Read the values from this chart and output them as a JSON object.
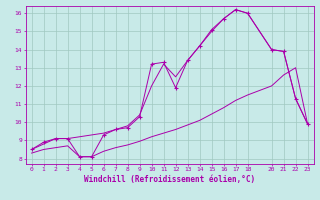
{
  "xlabel": "Windchill (Refroidissement éolien,°C)",
  "background_color": "#c8eae8",
  "grid_color": "#a0c8c0",
  "line_color": "#aa00aa",
  "xlim": [
    -0.5,
    23.5
  ],
  "ylim": [
    7.7,
    16.4
  ],
  "xticks": [
    0,
    1,
    2,
    3,
    4,
    5,
    6,
    7,
    8,
    9,
    10,
    11,
    12,
    13,
    14,
    15,
    16,
    17,
    18,
    20,
    21,
    22,
    23
  ],
  "yticks": [
    8,
    9,
    10,
    11,
    12,
    13,
    14,
    15,
    16
  ],
  "line1_x": [
    0,
    1,
    2,
    3,
    4,
    5,
    6,
    7,
    8,
    9,
    10,
    11,
    12,
    13,
    14,
    15,
    16,
    17,
    18,
    20,
    21,
    22,
    23
  ],
  "line1_y": [
    8.5,
    8.9,
    9.1,
    9.1,
    8.1,
    8.1,
    9.3,
    9.6,
    9.7,
    10.3,
    13.2,
    13.3,
    11.9,
    13.4,
    14.2,
    15.1,
    15.7,
    16.2,
    16.0,
    14.0,
    13.9,
    11.3,
    9.9
  ],
  "line2_x": [
    0,
    2,
    3,
    5,
    6,
    7,
    8,
    9,
    10,
    11,
    12,
    13,
    14,
    15,
    16,
    17,
    18,
    20,
    21,
    22,
    23
  ],
  "line2_y": [
    8.5,
    9.1,
    9.1,
    9.3,
    9.4,
    9.6,
    9.8,
    10.4,
    12.0,
    13.2,
    12.5,
    13.4,
    14.2,
    15.0,
    15.7,
    16.2,
    16.0,
    14.0,
    13.9,
    11.3,
    9.9
  ],
  "line3_x": [
    0,
    1,
    2,
    3,
    4,
    5,
    6,
    7,
    8,
    9,
    10,
    11,
    12,
    13,
    14,
    15,
    16,
    17,
    18,
    20,
    21,
    22,
    23
  ],
  "line3_y": [
    8.3,
    8.5,
    8.6,
    8.7,
    8.1,
    8.1,
    8.4,
    8.6,
    8.75,
    8.95,
    9.2,
    9.4,
    9.6,
    9.85,
    10.1,
    10.45,
    10.8,
    11.2,
    11.5,
    12.0,
    12.6,
    13.0,
    9.9
  ]
}
